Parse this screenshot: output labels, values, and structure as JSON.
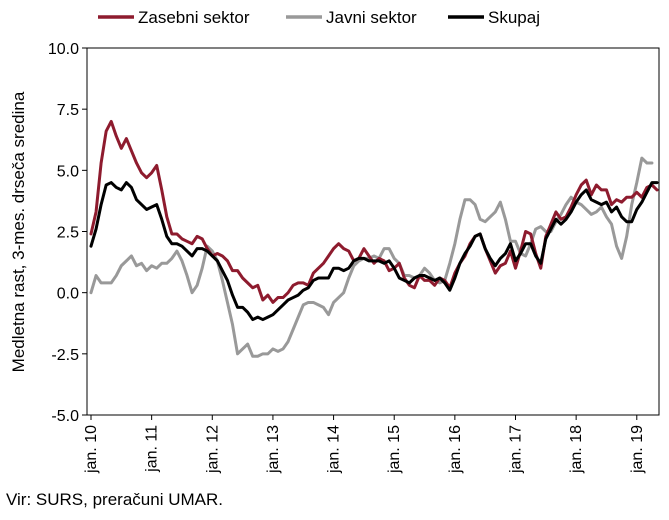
{
  "chart_data": {
    "type": "line",
    "title": "",
    "xlabel": "",
    "ylabel": "Medletna rast, 3-mes. drseča sredina",
    "ylim": [
      -5.0,
      10.0
    ],
    "yticks": [
      "10.0",
      "7.5",
      "5.0",
      "2.5",
      "0.0",
      "-2.5",
      "-5.0"
    ],
    "xticks": [
      "jan. 10",
      "jan. 11",
      "jan. 12",
      "jan. 13",
      "jan. 14",
      "jan. 15",
      "jan. 16",
      "jan. 17",
      "jan. 18",
      "jan. 19"
    ],
    "grid": false,
    "legend_position": "top",
    "series": [
      {
        "name": "Zasebni sektor",
        "color": "#8e1b2e",
        "values": [
          2.4,
          3.3,
          5.3,
          6.6,
          7.0,
          6.4,
          5.9,
          6.3,
          5.8,
          5.3,
          4.9,
          4.7,
          4.9,
          5.2,
          4.2,
          3.1,
          2.4,
          2.4,
          2.2,
          2.1,
          2.0,
          2.3,
          2.2,
          1.8,
          1.5,
          1.6,
          1.5,
          1.3,
          0.9,
          0.9,
          0.6,
          0.4,
          0.2,
          0.3,
          -0.3,
          -0.1,
          -0.4,
          -0.2,
          -0.2,
          0.0,
          0.3,
          0.4,
          0.4,
          0.3,
          0.8,
          1.0,
          1.2,
          1.5,
          1.8,
          2.0,
          1.8,
          1.7,
          1.3,
          1.4,
          1.8,
          1.5,
          1.2,
          1.4,
          1.3,
          0.9,
          1.0,
          1.2,
          0.6,
          0.3,
          0.2,
          0.7,
          0.5,
          0.5,
          0.3,
          0.6,
          0.5,
          0.2,
          0.8,
          1.2,
          1.5,
          2.0,
          2.3,
          2.4,
          1.8,
          1.3,
          0.8,
          1.1,
          1.2,
          1.7,
          1.0,
          1.7,
          2.5,
          2.4,
          1.6,
          1.0,
          2.3,
          2.8,
          3.3,
          3.0,
          3.1,
          3.5,
          4.0,
          4.4,
          4.6,
          4.0,
          4.4,
          4.2,
          4.2,
          3.6,
          3.8,
          3.7,
          3.9,
          3.9,
          4.1,
          3.9,
          4.3,
          4.4,
          4.2
        ]
      },
      {
        "name": "Javni sektor",
        "color": "#999999",
        "values": [
          0.0,
          0.7,
          0.4,
          0.4,
          0.4,
          0.7,
          1.1,
          1.3,
          1.5,
          1.1,
          1.2,
          0.9,
          1.1,
          1.0,
          1.2,
          1.2,
          1.4,
          1.7,
          1.3,
          0.7,
          0.0,
          0.3,
          1.0,
          1.9,
          1.7,
          1.3,
          0.5,
          -0.4,
          -1.3,
          -2.5,
          -2.3,
          -2.1,
          -2.6,
          -2.6,
          -2.5,
          -2.5,
          -2.3,
          -2.4,
          -2.3,
          -2.0,
          -1.5,
          -1.0,
          -0.5,
          -0.4,
          -0.4,
          -0.5,
          -0.6,
          -0.9,
          -0.4,
          -0.2,
          -0.0,
          0.6,
          1.1,
          1.3,
          1.4,
          1.4,
          1.5,
          1.4,
          1.8,
          1.8,
          1.4,
          1.2,
          0.7,
          0.7,
          0.6,
          0.7,
          1.0,
          0.8,
          0.5,
          0.4,
          0.5,
          1.2,
          2.0,
          3.0,
          3.8,
          3.8,
          3.6,
          3.0,
          2.9,
          3.1,
          3.3,
          3.7,
          3.0,
          2.1,
          2.1,
          1.6,
          1.5,
          2.0,
          2.6,
          2.7,
          2.5,
          2.5,
          2.9,
          3.2,
          3.6,
          3.9,
          3.7,
          3.6,
          3.4,
          3.2,
          3.3,
          3.5,
          3.1,
          2.8,
          1.9,
          1.4,
          2.3,
          3.6,
          4.5,
          5.5,
          5.3,
          5.3
        ]
      },
      {
        "name": "Skupaj",
        "color": "#000000",
        "values": [
          1.9,
          2.6,
          3.6,
          4.4,
          4.5,
          4.3,
          4.2,
          4.5,
          4.3,
          3.8,
          3.6,
          3.4,
          3.5,
          3.6,
          3.0,
          2.3,
          2.0,
          2.0,
          1.9,
          1.7,
          1.5,
          1.8,
          1.8,
          1.7,
          1.5,
          1.3,
          0.9,
          0.5,
          -0.1,
          -0.6,
          -0.6,
          -0.8,
          -1.1,
          -1.0,
          -1.1,
          -1.0,
          -0.9,
          -0.7,
          -0.5,
          -0.3,
          -0.2,
          -0.1,
          0.1,
          0.2,
          0.5,
          0.6,
          0.6,
          0.6,
          1.0,
          1.0,
          0.9,
          1.0,
          1.3,
          1.4,
          1.4,
          1.3,
          1.3,
          1.3,
          1.2,
          1.3,
          1.0,
          0.6,
          0.5,
          0.4,
          0.6,
          0.7,
          0.7,
          0.6,
          0.5,
          0.6,
          0.4,
          0.1,
          0.6,
          1.2,
          1.6,
          1.9,
          2.3,
          2.4,
          1.8,
          1.4,
          1.1,
          1.4,
          1.6,
          2.0,
          1.3,
          1.6,
          2.0,
          2.0,
          1.5,
          1.2,
          2.2,
          2.6,
          3.0,
          2.8,
          3.0,
          3.3,
          3.7,
          4.0,
          4.2,
          3.8,
          3.7,
          3.6,
          3.7,
          3.3,
          3.5,
          3.1,
          2.9,
          2.9,
          3.4,
          3.7,
          4.1,
          4.5,
          4.5
        ]
      }
    ]
  },
  "source_note": "Vir: SURS, preračuni UMAR."
}
